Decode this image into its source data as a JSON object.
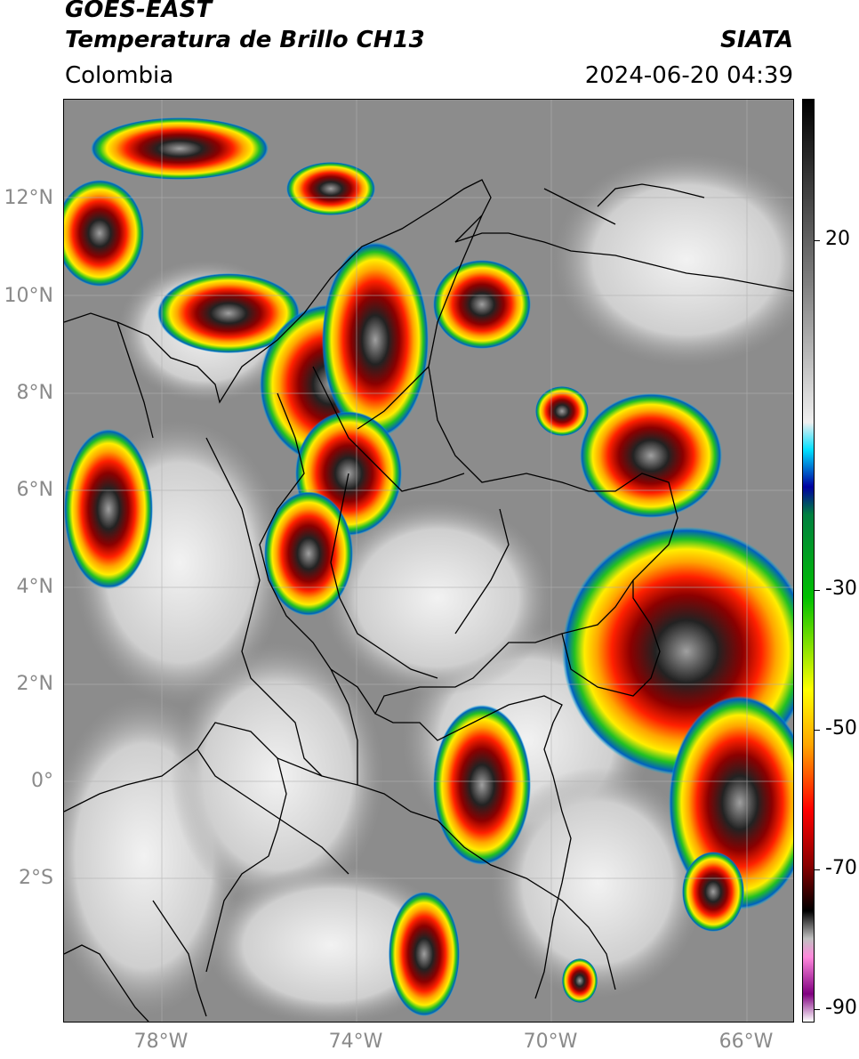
{
  "header": {
    "satellite": "GOES-EAST",
    "product": "Temperatura de Brillo CH13",
    "region": "Colombia",
    "agency": "SIATA",
    "datetime": "2024-06-20 04:39"
  },
  "map": {
    "lat_range": [
      -5,
      14
    ],
    "lon_range": [
      -80,
      -65
    ],
    "lat_ticks": [
      "12°N",
      "10°N",
      "8°N",
      "6°N",
      "4°N",
      "2°N",
      "0°",
      "2°S"
    ],
    "lon_ticks": [
      "78°W",
      "74°W",
      "70°W",
      "66°W"
    ],
    "gridlines": true,
    "background_color": "#8c8c8c"
  },
  "colorbar": {
    "label_values": [
      "20",
      "-30",
      "-50",
      "-70",
      "-90"
    ],
    "range": [
      -92,
      39
    ],
    "colors": [
      "#ffffff",
      "#800080",
      "#ff88dd",
      "#c0c0c0",
      "#000000",
      "#8b0000",
      "#ff0000",
      "#ffa500",
      "#ffff00",
      "#00c000",
      "#008040",
      "#0000a0",
      "#0070d0",
      "#00e0ff",
      "#f0f0f0",
      "#808080",
      "#000000"
    ]
  }
}
